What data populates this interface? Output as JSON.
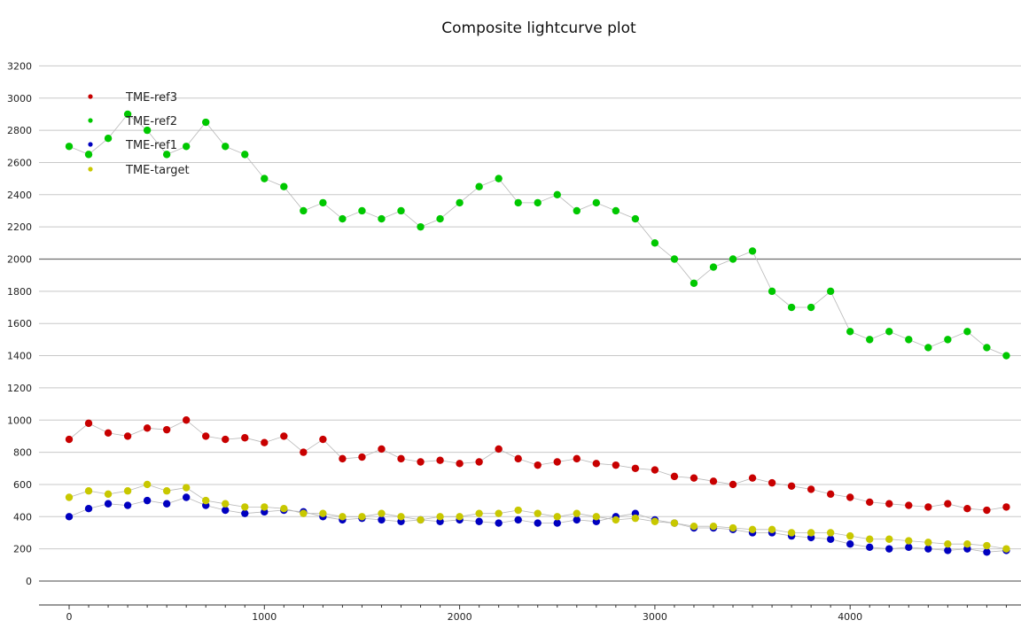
{
  "chart_data": {
    "type": "scatter",
    "title": "Composite lightcurve plot",
    "xlabel": "",
    "ylabel": "",
    "xlim": [
      -150,
      4850
    ],
    "ylim": [
      -150,
      3300
    ],
    "x_ticks": [
      0,
      1000,
      2000,
      3000,
      4000
    ],
    "y_ticks": [
      0,
      200,
      400,
      600,
      800,
      1000,
      1200,
      1400,
      1600,
      1800,
      2000,
      2200,
      2400,
      2600,
      2800,
      3000,
      3200
    ],
    "grid": true,
    "legend_position": "top-left",
    "series": [
      {
        "name": "TME-ref3",
        "color": "#c80000",
        "x": [
          0,
          100,
          200,
          300,
          400,
          500,
          600,
          700,
          800,
          900,
          1000,
          1100,
          1200,
          1300,
          1400,
          1500,
          1600,
          1700,
          1800,
          1900,
          2000,
          2100,
          2200,
          2300,
          2400,
          2500,
          2600,
          2700,
          2800,
          2900,
          3000,
          3100,
          3200,
          3300,
          3400,
          3500,
          3600,
          3700,
          3800,
          3900,
          4000,
          4100,
          4200,
          4300,
          4400,
          4500,
          4600,
          4700,
          4800
        ],
        "y": [
          880,
          980,
          920,
          900,
          950,
          940,
          1000,
          900,
          880,
          890,
          860,
          900,
          800,
          880,
          760,
          770,
          820,
          760,
          740,
          750,
          730,
          740,
          820,
          760,
          720,
          740,
          760,
          730,
          720,
          700,
          690,
          650,
          640,
          620,
          600,
          640,
          610,
          590,
          570,
          540,
          520,
          490,
          480,
          470,
          460,
          480,
          450,
          440,
          460
        ]
      },
      {
        "name": "TME-ref2",
        "color": "#00c800",
        "x": [
          0,
          100,
          200,
          300,
          400,
          500,
          600,
          700,
          800,
          900,
          1000,
          1100,
          1200,
          1300,
          1400,
          1500,
          1600,
          1700,
          1800,
          1900,
          2000,
          2100,
          2200,
          2300,
          2400,
          2500,
          2600,
          2700,
          2800,
          2900,
          3000,
          3100,
          3200,
          3300,
          3400,
          3500,
          3600,
          3700,
          3800,
          3900,
          4000,
          4100,
          4200,
          4300,
          4400,
          4500,
          4600,
          4700,
          4800
        ],
        "y": [
          2700,
          2650,
          2750,
          2900,
          2800,
          2650,
          2700,
          2850,
          2700,
          2650,
          2500,
          2450,
          2300,
          2350,
          2250,
          2300,
          2250,
          2300,
          2200,
          2250,
          2350,
          2450,
          2500,
          2350,
          2350,
          2400,
          2300,
          2350,
          2300,
          2250,
          2100,
          2000,
          1850,
          1950,
          2000,
          2050,
          1800,
          1700,
          1700,
          1800,
          1550,
          1500,
          1550,
          1500,
          1450,
          1500,
          1550,
          1450,
          1400
        ]
      },
      {
        "name": "TME-ref1",
        "color": "#0000c0",
        "x": [
          0,
          100,
          200,
          300,
          400,
          500,
          600,
          700,
          800,
          900,
          1000,
          1100,
          1200,
          1300,
          1400,
          1500,
          1600,
          1700,
          1800,
          1900,
          2000,
          2100,
          2200,
          2300,
          2400,
          2500,
          2600,
          2700,
          2800,
          2900,
          3000,
          3100,
          3200,
          3300,
          3400,
          3500,
          3600,
          3700,
          3800,
          3900,
          4000,
          4100,
          4200,
          4300,
          4400,
          4500,
          4600,
          4700,
          4800
        ],
        "y": [
          400,
          450,
          480,
          470,
          500,
          480,
          520,
          470,
          440,
          420,
          430,
          440,
          430,
          400,
          380,
          390,
          380,
          370,
          380,
          370,
          380,
          370,
          360,
          380,
          360,
          360,
          380,
          370,
          400,
          420,
          380,
          360,
          330,
          330,
          320,
          300,
          300,
          280,
          270,
          260,
          230,
          210,
          200,
          210,
          200,
          190,
          200,
          180,
          190
        ]
      },
      {
        "name": "TME-target",
        "color": "#c8c800",
        "x": [
          0,
          100,
          200,
          300,
          400,
          500,
          600,
          700,
          800,
          900,
          1000,
          1100,
          1200,
          1300,
          1400,
          1500,
          1600,
          1700,
          1800,
          1900,
          2000,
          2100,
          2200,
          2300,
          2400,
          2500,
          2600,
          2700,
          2800,
          2900,
          3000,
          3100,
          3200,
          3300,
          3400,
          3500,
          3600,
          3700,
          3800,
          3900,
          4000,
          4100,
          4200,
          4300,
          4400,
          4500,
          4600,
          4700,
          4800
        ],
        "y": [
          520,
          560,
          540,
          560,
          600,
          560,
          580,
          500,
          480,
          460,
          460,
          450,
          420,
          420,
          400,
          400,
          420,
          400,
          380,
          400,
          400,
          420,
          420,
          440,
          420,
          400,
          420,
          400,
          380,
          390,
          370,
          360,
          340,
          340,
          330,
          320,
          320,
          300,
          300,
          300,
          280,
          260,
          260,
          250,
          240,
          230,
          230,
          220,
          200
        ]
      }
    ]
  }
}
